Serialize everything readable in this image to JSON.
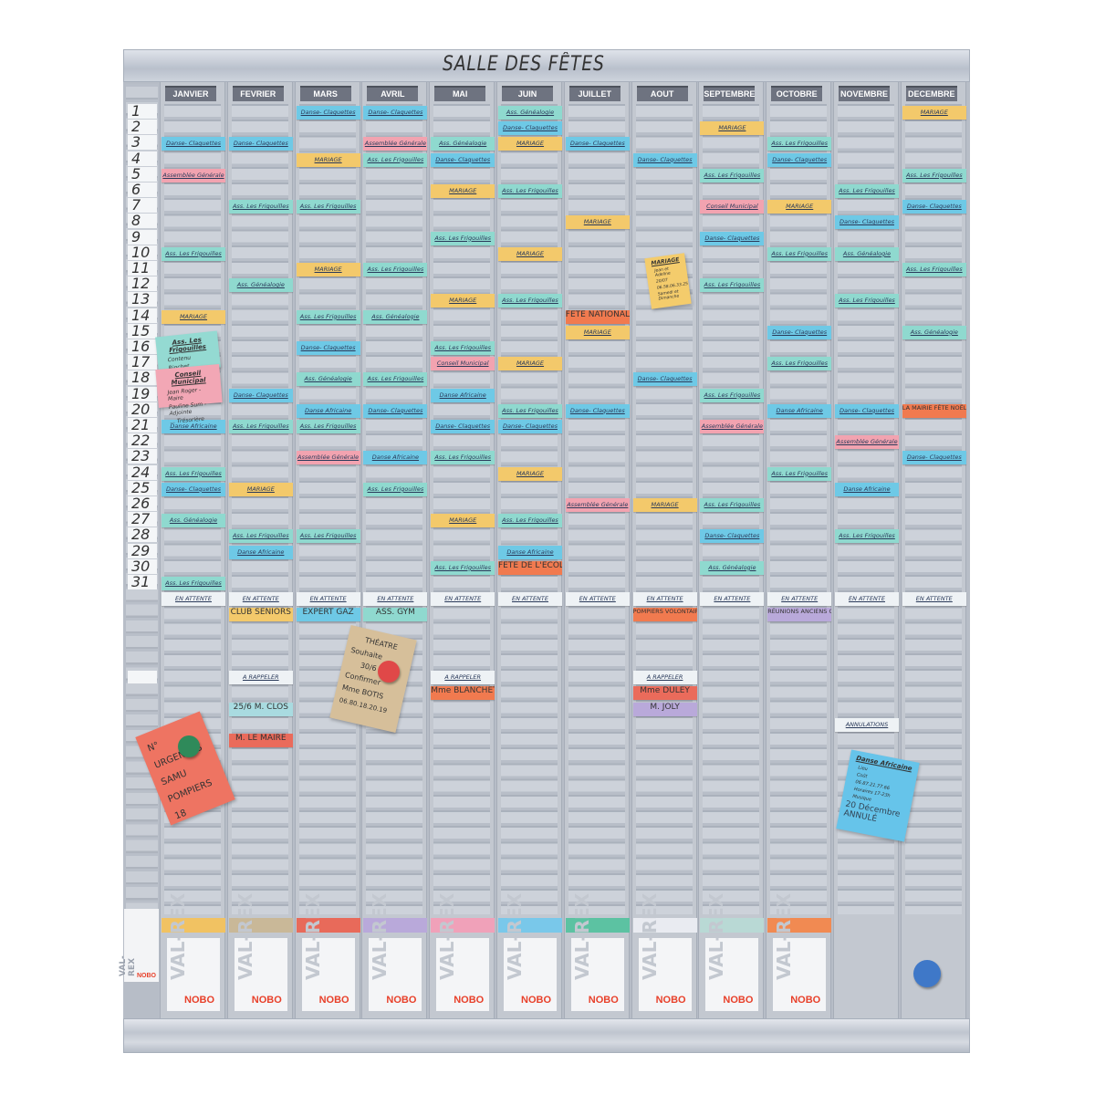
{
  "title": "SALLE DES FÊTES",
  "palette": {
    "blue": "#6ec9e6",
    "teal": "#8fd9cf",
    "yellow": "#f3c96b",
    "pink": "#f2a3b0",
    "orange": "#f17a4f",
    "white": "#eef2f5",
    "purple": "#b9a9da",
    "red": "#ea6b5b",
    "lightblue": "#a9dbe0"
  },
  "days": [
    "1",
    "2",
    "3",
    "4",
    "5",
    "6",
    "7",
    "8",
    "9",
    "10",
    "11",
    "12",
    "13",
    "14",
    "15",
    "16",
    "17",
    "18",
    "19",
    "20",
    "21",
    "22",
    "23",
    "24",
    "25",
    "26",
    "27",
    "28",
    "29",
    "30",
    "31"
  ],
  "months": [
    {
      "name": "JANVIER",
      "cards": [
        {
          "d": 3,
          "t": "Danse- Claquettes",
          "c": "blue"
        },
        {
          "d": 5,
          "t": "Assemblée Générale",
          "c": "pink"
        },
        {
          "d": 10,
          "t": "Ass. Les Frigouilles",
          "c": "teal"
        },
        {
          "d": 14,
          "t": "MARIAGE",
          "c": "yellow"
        },
        {
          "d": 21,
          "t": "Danse Africaine",
          "c": "blue"
        },
        {
          "d": 24,
          "t": "Ass. Les Frigouilles",
          "c": "teal"
        },
        {
          "d": 25,
          "t": "Danse- Claquettes",
          "c": "blue"
        },
        {
          "d": 27,
          "t": "Ass. Généalogie",
          "c": "teal"
        },
        {
          "d": 31,
          "t": "Ass. Les Frigouilles",
          "c": "teal"
        }
      ],
      "lower": [
        {
          "t": "EN ATTENTE",
          "c": "white"
        }
      ]
    },
    {
      "name": "FEVRIER",
      "cards": [
        {
          "d": 3,
          "t": "Danse- Claquettes",
          "c": "blue"
        },
        {
          "d": 7,
          "t": "Ass. Les Frigouilles",
          "c": "teal"
        },
        {
          "d": 12,
          "t": "Ass. Généalogie",
          "c": "teal"
        },
        {
          "d": 19,
          "t": "Danse- Claquettes",
          "c": "blue"
        },
        {
          "d": 21,
          "t": "Ass. Les Frigouilles",
          "c": "teal"
        },
        {
          "d": 25,
          "t": "MARIAGE",
          "c": "yellow"
        },
        {
          "d": 28,
          "t": "Ass. Les Frigouilles",
          "c": "teal"
        },
        {
          "d": 29,
          "t": "Danse Africaine",
          "c": "blue"
        }
      ],
      "lower": [
        {
          "t": "EN ATTENTE",
          "c": "white"
        },
        {
          "t": "CLUB SENIORS",
          "c": "yellow",
          "hand": true
        },
        {
          "t": "A RAPPELER",
          "c": "white"
        },
        {
          "t": "25/6 M. CLOS",
          "c": "lightblue",
          "hand": true
        },
        {
          "t": "M. LE MAIRE",
          "c": "red",
          "hand": true
        }
      ]
    },
    {
      "name": "MARS",
      "cards": [
        {
          "d": 1,
          "t": "Danse- Claquettes",
          "c": "blue"
        },
        {
          "d": 4,
          "t": "MARIAGE",
          "c": "yellow"
        },
        {
          "d": 7,
          "t": "Ass. Les Frigouilles",
          "c": "teal"
        },
        {
          "d": 11,
          "t": "MARIAGE",
          "c": "yellow"
        },
        {
          "d": 14,
          "t": "Ass. Les Frigouilles",
          "c": "teal"
        },
        {
          "d": 16,
          "t": "Danse- Claquettes",
          "c": "blue"
        },
        {
          "d": 18,
          "t": "Ass. Généalogie",
          "c": "teal"
        },
        {
          "d": 20,
          "t": "Danse Africaine",
          "c": "blue"
        },
        {
          "d": 21,
          "t": "Ass. Les Frigouilles",
          "c": "teal"
        },
        {
          "d": 23,
          "t": "Assemblée Générale",
          "c": "pink"
        },
        {
          "d": 28,
          "t": "Ass. Les Frigouilles",
          "c": "teal"
        }
      ],
      "lower": [
        {
          "t": "EN ATTENTE",
          "c": "white"
        },
        {
          "t": "EXPERT GAZ",
          "c": "blue",
          "hand": true
        }
      ]
    },
    {
      "name": "AVRIL",
      "cards": [
        {
          "d": 1,
          "t": "Danse- Claquettes",
          "c": "blue"
        },
        {
          "d": 3,
          "t": "Assemblée Générale",
          "c": "pink"
        },
        {
          "d": 4,
          "t": "Ass. Les Frigouilles",
          "c": "teal"
        },
        {
          "d": 11,
          "t": "Ass. Les Frigouilles",
          "c": "teal"
        },
        {
          "d": 14,
          "t": "Ass. Généalogie",
          "c": "teal"
        },
        {
          "d": 18,
          "t": "Ass. Les Frigouilles",
          "c": "teal"
        },
        {
          "d": 20,
          "t": "Danse- Claquettes",
          "c": "blue"
        },
        {
          "d": 23,
          "t": "Danse Africaine",
          "c": "blue"
        },
        {
          "d": 25,
          "t": "Ass. Les Frigouilles",
          "c": "teal"
        }
      ],
      "lower": [
        {
          "t": "EN ATTENTE",
          "c": "white"
        },
        {
          "t": "ASS. GYM",
          "c": "teal",
          "hand": true
        }
      ]
    },
    {
      "name": "MAI",
      "cards": [
        {
          "d": 3,
          "t": "Ass. Généalogie",
          "c": "teal"
        },
        {
          "d": 4,
          "t": "Danse- Claquettes",
          "c": "blue"
        },
        {
          "d": 6,
          "t": "MARIAGE",
          "c": "yellow"
        },
        {
          "d": 9,
          "t": "Ass. Les Frigouilles",
          "c": "teal"
        },
        {
          "d": 13,
          "t": "MARIAGE",
          "c": "yellow"
        },
        {
          "d": 16,
          "t": "Ass. Les Frigouilles",
          "c": "teal"
        },
        {
          "d": 17,
          "t": "Conseil Municipal",
          "c": "pink"
        },
        {
          "d": 19,
          "t": "Danse Africaine",
          "c": "blue"
        },
        {
          "d": 21,
          "t": "Danse- Claquettes",
          "c": "blue"
        },
        {
          "d": 23,
          "t": "Ass. Les Frigouilles",
          "c": "teal"
        },
        {
          "d": 27,
          "t": "MARIAGE",
          "c": "yellow"
        },
        {
          "d": 30,
          "t": "Ass. Les Frigouilles",
          "c": "teal"
        }
      ],
      "lower": [
        {
          "t": "EN ATTENTE",
          "c": "white"
        },
        {
          "t": "A RAPPELER",
          "c": "white"
        },
        {
          "t": "Mme BLANCHET",
          "c": "orange",
          "hand": true
        }
      ]
    },
    {
      "name": "JUIN",
      "cards": [
        {
          "d": 1,
          "t": "Ass. Généalogie",
          "c": "teal"
        },
        {
          "d": 2,
          "t": "Danse- Claquettes",
          "c": "blue"
        },
        {
          "d": 3,
          "t": "MARIAGE",
          "c": "yellow"
        },
        {
          "d": 6,
          "t": "Ass. Les Frigouilles",
          "c": "teal"
        },
        {
          "d": 10,
          "t": "MARIAGE",
          "c": "yellow"
        },
        {
          "d": 13,
          "t": "Ass. Les Frigouilles",
          "c": "teal"
        },
        {
          "d": 17,
          "t": "MARIAGE",
          "c": "yellow"
        },
        {
          "d": 20,
          "t": "Ass. Les Frigouilles",
          "c": "teal"
        },
        {
          "d": 21,
          "t": "Danse- Claquettes",
          "c": "blue"
        },
        {
          "d": 24,
          "t": "MARIAGE",
          "c": "yellow"
        },
        {
          "d": 27,
          "t": "Ass. Les Frigouilles",
          "c": "teal"
        },
        {
          "d": 29,
          "t": "Danse Africaine",
          "c": "blue"
        },
        {
          "d": 30,
          "t": "FÊTE DE L'ÉCOLE",
          "c": "orange",
          "hand": true
        }
      ],
      "lower": [
        {
          "t": "EN ATTENTE",
          "c": "white"
        }
      ]
    },
    {
      "name": "JUILLET",
      "cards": [
        {
          "d": 3,
          "t": "Danse- Claquettes",
          "c": "blue"
        },
        {
          "d": 8,
          "t": "MARIAGE",
          "c": "yellow"
        },
        {
          "d": 14,
          "t": "FÊTE NATIONALE",
          "c": "orange",
          "hand": true
        },
        {
          "d": 15,
          "t": "MARIAGE",
          "c": "yellow"
        },
        {
          "d": 20,
          "t": "Danse- Claquettes",
          "c": "blue"
        },
        {
          "d": 26,
          "t": "Assemblée Générale",
          "c": "pink"
        }
      ],
      "lower": [
        {
          "t": "EN ATTENTE",
          "c": "white"
        }
      ]
    },
    {
      "name": "AOUT",
      "cards": [
        {
          "d": 4,
          "t": "Danse- Claquettes",
          "c": "blue"
        },
        {
          "d": 18,
          "t": "Danse- Claquettes",
          "c": "blue"
        },
        {
          "d": 26,
          "t": "MARIAGE",
          "c": "yellow"
        }
      ],
      "lower": [
        {
          "t": "EN ATTENTE",
          "c": "white"
        },
        {
          "t": "POMPIERS VOLONTAIRES",
          "c": "orange",
          "hand": true
        },
        {
          "t": "A RAPPELER",
          "c": "white"
        },
        {
          "t": "Mme DULEY",
          "c": "red",
          "hand": true
        },
        {
          "t": "M. JOLY",
          "c": "purple",
          "hand": true
        }
      ]
    },
    {
      "name": "SEPTEMBRE",
      "cards": [
        {
          "d": 2,
          "t": "MARIAGE",
          "c": "yellow"
        },
        {
          "d": 5,
          "t": "Ass. Les Frigouilles",
          "c": "teal"
        },
        {
          "d": 7,
          "t": "Conseil Municipal",
          "c": "pink"
        },
        {
          "d": 9,
          "t": "Danse- Claquettes",
          "c": "blue"
        },
        {
          "d": 12,
          "t": "Ass. Les Frigouilles",
          "c": "teal"
        },
        {
          "d": 19,
          "t": "Ass. Les Frigouilles",
          "c": "teal"
        },
        {
          "d": 21,
          "t": "Assemblée Générale",
          "c": "pink"
        },
        {
          "d": 26,
          "t": "Ass. Les Frigouilles",
          "c": "teal"
        },
        {
          "d": 28,
          "t": "Danse- Claquettes",
          "c": "blue"
        },
        {
          "d": 30,
          "t": "Ass. Généalogie",
          "c": "teal"
        }
      ],
      "lower": [
        {
          "t": "EN ATTENTE",
          "c": "white"
        }
      ]
    },
    {
      "name": "OCTOBRE",
      "cards": [
        {
          "d": 3,
          "t": "Ass. Les Frigouilles",
          "c": "teal"
        },
        {
          "d": 4,
          "t": "Danse- Claquettes",
          "c": "blue"
        },
        {
          "d": 7,
          "t": "MARIAGE",
          "c": "yellow"
        },
        {
          "d": 10,
          "t": "Ass. Les Frigouilles",
          "c": "teal"
        },
        {
          "d": 15,
          "t": "Danse- Claquettes",
          "c": "blue"
        },
        {
          "d": 17,
          "t": "Ass. Les Frigouilles",
          "c": "teal"
        },
        {
          "d": 20,
          "t": "Danse Africaine",
          "c": "blue"
        },
        {
          "d": 24,
          "t": "Ass. Les Frigouilles",
          "c": "teal"
        }
      ],
      "lower": [
        {
          "t": "EN ATTENTE",
          "c": "white"
        },
        {
          "t": "RÉUNIONS ANCIENS COMBATTANTS",
          "c": "purple",
          "hand": true
        }
      ]
    },
    {
      "name": "NOVEMBRE",
      "cards": [
        {
          "d": 6,
          "t": "Ass. Les Frigouilles",
          "c": "teal"
        },
        {
          "d": 8,
          "t": "Danse- Claquettes",
          "c": "blue"
        },
        {
          "d": 10,
          "t": "Ass. Généalogie",
          "c": "teal"
        },
        {
          "d": 13,
          "t": "Ass. Les Frigouilles",
          "c": "teal"
        },
        {
          "d": 20,
          "t": "Danse- Claquettes",
          "c": "blue"
        },
        {
          "d": 22,
          "t": "Assemblée Générale",
          "c": "pink"
        },
        {
          "d": 25,
          "t": "Danse Africaine",
          "c": "blue"
        },
        {
          "d": 28,
          "t": "Ass. Les Frigouilles",
          "c": "teal"
        }
      ],
      "lower": [
        {
          "t": "EN ATTENTE",
          "c": "white"
        },
        {
          "t": "ANNULATIONS",
          "c": "white"
        }
      ]
    },
    {
      "name": "DECEMBRE",
      "cards": [
        {
          "d": 1,
          "t": "MARIAGE",
          "c": "yellow"
        },
        {
          "d": 5,
          "t": "Ass. Les Frigouilles",
          "c": "teal"
        },
        {
          "d": 7,
          "t": "Danse- Claquettes",
          "c": "blue"
        },
        {
          "d": 11,
          "t": "Ass. Les Frigouilles",
          "c": "teal"
        },
        {
          "d": 15,
          "t": "Ass. Généalogie",
          "c": "teal"
        },
        {
          "d": 20,
          "t": "LA MAIRIE FÊTE NOËL",
          "c": "orange",
          "hand": true
        },
        {
          "d": 23,
          "t": "Danse- Claquettes",
          "c": "blue"
        }
      ],
      "lower": [
        {
          "t": "EN ATTENTE",
          "c": "white"
        }
      ]
    }
  ],
  "notes": {
    "frigouilles": {
      "title": "Ass. Les Frigouilles",
      "bullets": [
        "Contenu",
        "Rinchet"
      ]
    },
    "conseil": {
      "title": "Conseil Municipal",
      "bullets": [
        "Jean Roger - Maire",
        "Pauline Sum - Adjointe",
        "... Trésorière"
      ]
    },
    "mariage": {
      "title": "MARIAGE",
      "bullets": [
        "Jean et Adeline",
        "20/07",
        "06.58.06.33.25",
        "Samedi et Dimanche"
      ]
    },
    "theatre": {
      "lines": [
        "THÉATRE",
        "Souhaite",
        "30/6 soir.",
        "Confirmer",
        "Mme BOTIS",
        "06.80.18.20.19"
      ]
    },
    "urgences": {
      "lines": [
        "N° URGENCES",
        "SAMU",
        "POMPIERS 18"
      ]
    },
    "africaine": {
      "title": "Danse Africaine",
      "bullets": [
        "Lieu",
        "Coût",
        "06.87.21.77.66",
        "Horaires 17-23h",
        "Musique"
      ],
      "footer": "20 Décembre ANNULÉ"
    }
  },
  "pockets": {
    "brand": "VAL-REX",
    "maker": "NOBO",
    "colors": [
      "#f1c262",
      "#c9b898",
      "#e86a5a",
      "#b9a9da",
      "#f0a1b9",
      "#79c8ea",
      "#5cc2a2",
      "#e9ebf1",
      "#b9d9d5",
      "#f18a52"
    ]
  },
  "magnets": {
    "red": "#e04848",
    "green": "#2f8a5a",
    "blue": "#3f78c8"
  }
}
